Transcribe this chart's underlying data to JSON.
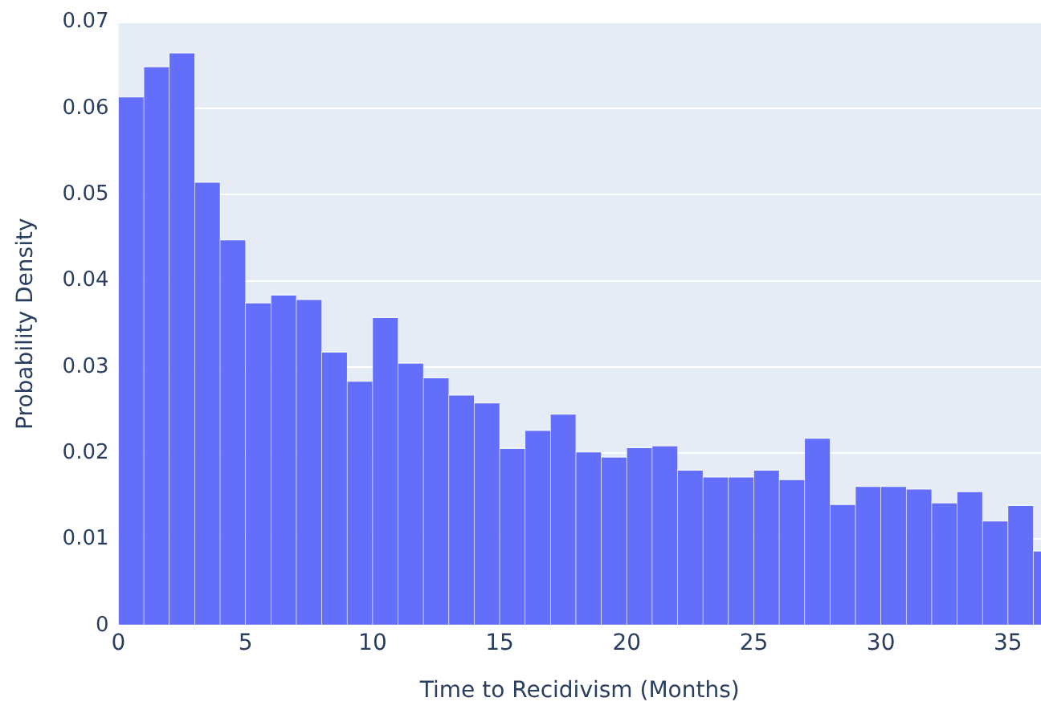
{
  "chart_data": {
    "type": "histogram",
    "xlabel": "Time to Recidivism (Months)",
    "ylabel": "Probability Density",
    "bins": [
      0,
      1,
      2,
      3,
      4,
      5,
      6,
      7,
      8,
      9,
      10,
      11,
      12,
      13,
      14,
      15,
      16,
      17,
      18,
      19,
      20,
      21,
      22,
      23,
      24,
      25,
      26,
      27,
      28,
      29,
      30,
      31,
      32,
      33,
      34,
      35,
      36,
      37
    ],
    "values": [
      0.0614,
      0.0649,
      0.0665,
      0.0515,
      0.0448,
      0.0375,
      0.0384,
      0.0379,
      0.0318,
      0.0284,
      0.0358,
      0.0305,
      0.0288,
      0.0268,
      0.0259,
      0.0206,
      0.0227,
      0.0246,
      0.0202,
      0.0196,
      0.0207,
      0.0209,
      0.0181,
      0.0173,
      0.0173,
      0.0181,
      0.017,
      0.0218,
      0.0141,
      0.0162,
      0.0162,
      0.0159,
      0.0143,
      0.0156,
      0.0122,
      0.014,
      0.0087
    ],
    "color": "#636efa",
    "xlim": [
      0,
      36.3
    ],
    "xticks": [
      0,
      5,
      10,
      15,
      20,
      25,
      30,
      35
    ],
    "ylim": [
      0,
      0.07
    ],
    "yticks": [
      0,
      0.01,
      0.02,
      0.03,
      0.04,
      0.05,
      0.06,
      0.07
    ],
    "grid": "y"
  }
}
